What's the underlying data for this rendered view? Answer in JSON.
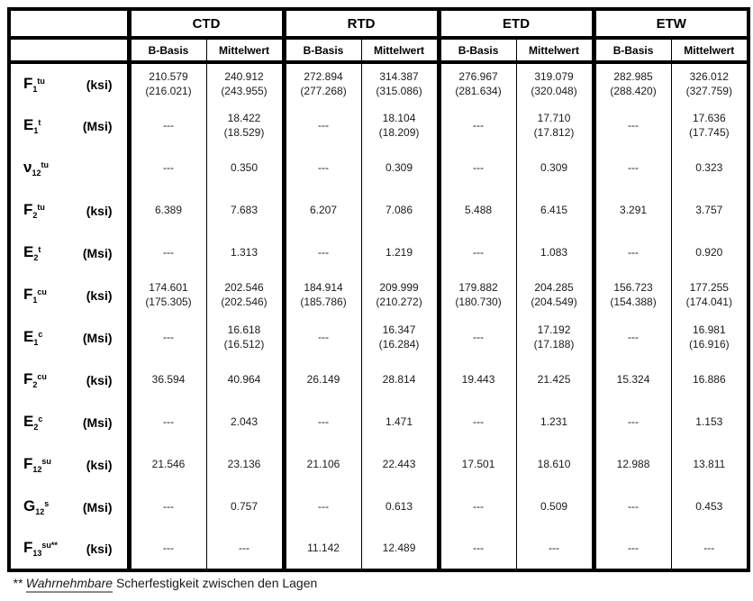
{
  "colors": {
    "border": "#000000",
    "text": "#1a1a1a",
    "background": "#ffffff"
  },
  "table": {
    "group_headers": [
      "CTD",
      "RTD",
      "ETD",
      "ETW"
    ],
    "sub_headers": [
      "B-Basis",
      "Mittelwert"
    ],
    "rows": [
      {
        "sym": "F",
        "sub": "1",
        "sup": "tu",
        "unit": "(ksi)",
        "values": [
          "210.579\n(216.021)",
          "240.912\n(243.955)",
          "272.894\n(277.268)",
          "314.387\n(315.086)",
          "276.967\n(281.634)",
          "319.079\n(320.048)",
          "282.985\n(288.420)",
          "326.012\n(327.759)"
        ]
      },
      {
        "sym": "E",
        "sub": "1",
        "sup": "t",
        "unit": "(Msi)",
        "values": [
          "---",
          "18.422\n(18.529)",
          "---",
          "18.104\n(18.209)",
          "---",
          "17.710\n(17.812)",
          "---",
          "17.636\n(17.745)"
        ]
      },
      {
        "sym": "ν",
        "sub": "12",
        "sup": "tu",
        "unit": "",
        "values": [
          "---",
          "0.350",
          "---",
          "0.309",
          "---",
          "0.309",
          "---",
          "0.323"
        ]
      },
      {
        "sym": "F",
        "sub": "2",
        "sup": "tu",
        "unit": "(ksi)",
        "values": [
          "6.389",
          "7.683",
          "6.207",
          "7.086",
          "5.488",
          "6.415",
          "3.291",
          "3.757"
        ]
      },
      {
        "sym": "E",
        "sub": "2",
        "sup": "t",
        "unit": "(Msi)",
        "values": [
          "---",
          "1.313",
          "---",
          "1.219",
          "---",
          "1.083",
          "---",
          "0.920"
        ]
      },
      {
        "sym": "F",
        "sub": "1",
        "sup": "cu",
        "unit": "(ksi)",
        "values": [
          "174.601\n(175.305)",
          "202.546\n(202.546)",
          "184.914\n(185.786)",
          "209.999\n(210.272)",
          "179.882\n(180.730)",
          "204.285\n(204.549)",
          "156.723\n(154.388)",
          "177.255\n(174.041)"
        ]
      },
      {
        "sym": "E",
        "sub": "1",
        "sup": "c",
        "unit": "(Msi)",
        "values": [
          "---",
          "16.618\n(16.512)",
          "---",
          "16.347\n(16.284)",
          "---",
          "17.192\n(17.188)",
          "---",
          "16.981\n(16.916)"
        ]
      },
      {
        "sym": "F",
        "sub": "2",
        "sup": "cu",
        "unit": "(ksi)",
        "values": [
          "36.594",
          "40.964",
          "26.149",
          "28.814",
          "19.443",
          "21.425",
          "15.324",
          "16.886"
        ]
      },
      {
        "sym": "E",
        "sub": "2",
        "sup": "c",
        "unit": "(Msi)",
        "values": [
          "---",
          "2.043",
          "---",
          "1.471",
          "---",
          "1.231",
          "---",
          "1.153"
        ]
      },
      {
        "sym": "F",
        "sub": "12",
        "sup": "su",
        "unit": "(ksi)",
        "values": [
          "21.546",
          "23.136",
          "21.106",
          "22.443",
          "17.501",
          "18.610",
          "12.988",
          "13.811"
        ]
      },
      {
        "sym": "G",
        "sub": "12",
        "sup": "s",
        "unit": "(Msi)",
        "values": [
          "---",
          "0.757",
          "---",
          "0.613",
          "---",
          "0.509",
          "---",
          "0.453"
        ]
      },
      {
        "sym": "F",
        "sub": "13",
        "sup": "su**",
        "unit": "(ksi)",
        "values": [
          "---",
          "---",
          "11.142",
          "12.489",
          "---",
          "---",
          "---",
          "---"
        ]
      }
    ]
  },
  "footnote": {
    "marker": "**",
    "emphasis": "Wahrnehmbare",
    "rest": "Scherfestigkeit zwischen den Lagen"
  }
}
